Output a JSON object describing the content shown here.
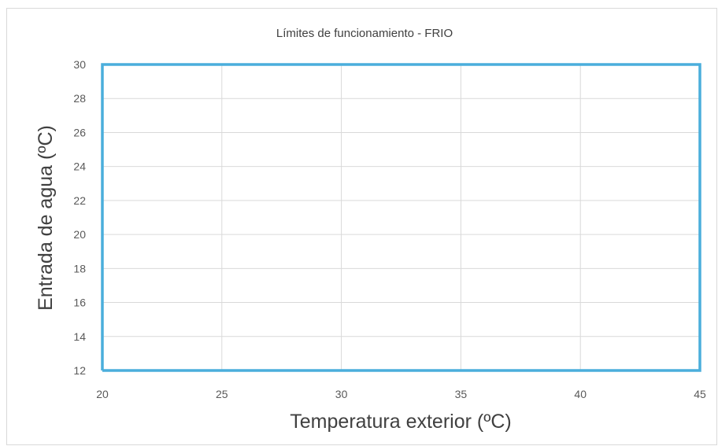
{
  "chart_data": {
    "type": "line",
    "title": "Límites de funcionamiento - FRIO",
    "xlabel": "Temperatura exterior (ºC)",
    "ylabel": "Entrada de agua (ºC)",
    "xlim": [
      20,
      45
    ],
    "ylim": [
      12,
      30
    ],
    "x_ticks": [
      "20",
      "25",
      "30",
      "35",
      "40",
      "45"
    ],
    "y_ticks": [
      "12",
      "14",
      "16",
      "18",
      "20",
      "22",
      "24",
      "26",
      "28",
      "30"
    ],
    "grid": true,
    "series": [
      {
        "color": "#4aaedc",
        "x": [
          20,
          45,
          45,
          20,
          20
        ],
        "y": [
          12,
          12,
          30,
          30,
          12
        ]
      }
    ],
    "colors": {
      "grid": "#d9d9d9",
      "series": "#4aaedc",
      "text": "#595959"
    }
  }
}
